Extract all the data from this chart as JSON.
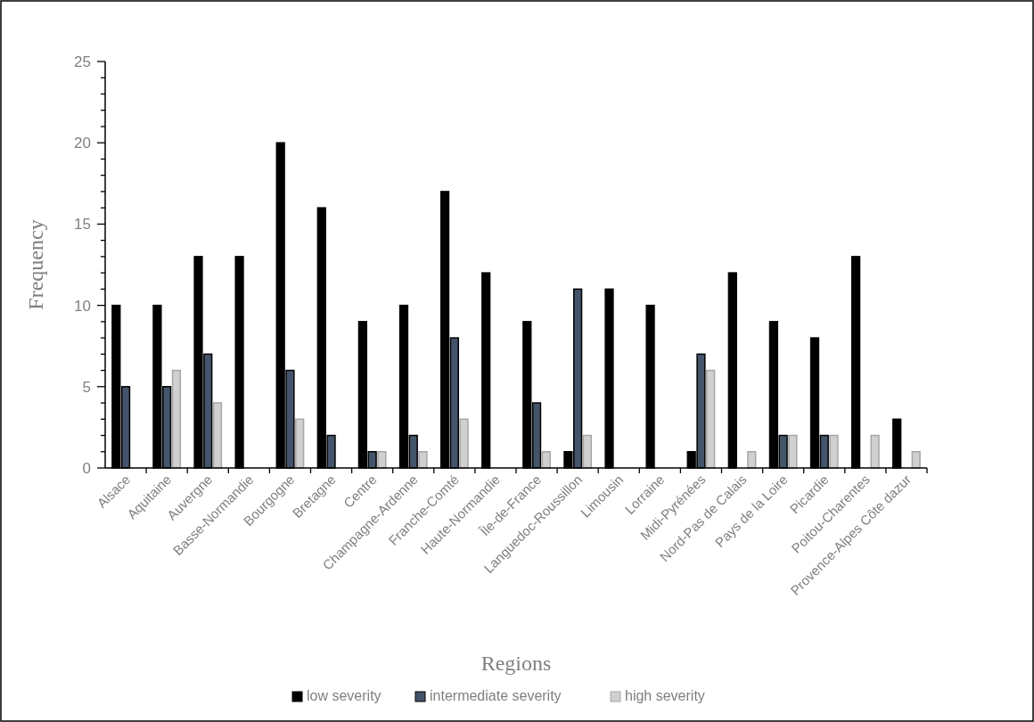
{
  "chart_data": {
    "type": "bar",
    "xlabel": "Regions",
    "ylabel": "Frequency",
    "categories": [
      "Alsace",
      "Aquitaine",
      "Auvergne",
      "Basse-Normandie",
      "Bourgogne",
      "Bretagne",
      "Centre",
      "Champagne-Ardenne",
      "Franche-Comté",
      "Haute-Normandie",
      "Île-de-France",
      "Languedoc-Roussillon",
      "Limousin",
      "Lorraine",
      "Midi-Pyrénées",
      "Nord-Pas de Calais",
      "Pays de la Loire",
      "Picardie",
      "Poitou-Charentes",
      "Provence-Alpes Côte dazur"
    ],
    "series": [
      {
        "name": "low severity",
        "color": "#000000",
        "values": [
          10,
          10,
          13,
          13,
          20,
          16,
          9,
          10,
          17,
          12,
          9,
          1,
          11,
          10,
          1,
          12,
          9,
          8,
          13,
          3
        ]
      },
      {
        "name": "intermediate severity",
        "color": "#44546a",
        "values": [
          5,
          5,
          7,
          0,
          6,
          2,
          1,
          2,
          8,
          0,
          4,
          11,
          0,
          0,
          7,
          0,
          2,
          2,
          0,
          0
        ]
      },
      {
        "name": "high severity",
        "color": "#d0d0d0",
        "values": [
          0,
          6,
          4,
          0,
          3,
          0,
          1,
          1,
          3,
          0,
          1,
          2,
          0,
          0,
          6,
          1,
          2,
          2,
          2,
          1
        ]
      }
    ],
    "ylim": [
      0,
      25
    ],
    "yticks": [
      0,
      {
        "value": 1,
        "label": null
      },
      {
        "value": 2,
        "label": null
      },
      {
        "value": 3,
        "label": null
      },
      {
        "value": 4,
        "label": null
      },
      5,
      {
        "value": 6,
        "label": null
      },
      {
        "value": 7,
        "label": null
      },
      {
        "value": 8,
        "label": null
      },
      {
        "value": 9,
        "label": null
      },
      10,
      {
        "value": 11,
        "label": null
      },
      {
        "value": 12,
        "label": null
      },
      {
        "value": 13,
        "label": null
      },
      {
        "value": 14,
        "label": null
      },
      15,
      {
        "value": 16,
        "label": null
      },
      {
        "value": 17,
        "label": null
      },
      {
        "value": 18,
        "label": null
      },
      {
        "value": 19,
        "label": null
      },
      20,
      {
        "value": 21,
        "label": null
      },
      {
        "value": 22,
        "label": null
      },
      {
        "value": 23,
        "label": null
      },
      {
        "value": 24,
        "label": null
      },
      25
    ],
    "grid": false,
    "legend": "bottom"
  }
}
